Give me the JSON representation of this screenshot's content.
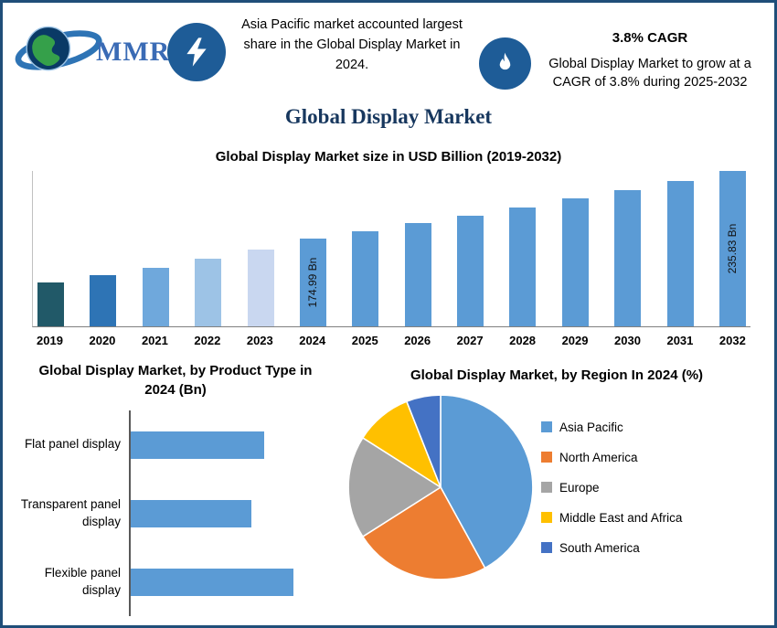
{
  "page": {
    "title": "Global Display Market",
    "border_color": "#1F4E79",
    "background_color": "#FFFFFF",
    "title_color": "#17375E"
  },
  "header": {
    "logo_text": "MMR",
    "left_callout": {
      "icon": "lightning-icon",
      "text": "Asia Pacific market accounted largest share in the Global Display Market in 2024."
    },
    "right_callout": {
      "icon": "flame-icon",
      "title": "3.8% CAGR",
      "text": "Global Display Market to grow at a CAGR of 3.8% during 2025-2032"
    },
    "badge_color": "#1E5C97"
  },
  "chart_data": [
    {
      "id": "market_size",
      "type": "bar",
      "title": "Global Display Market size in USD Billion (2019-2032)",
      "unit": "USD Billion",
      "categories": [
        "2019",
        "2020",
        "2021",
        "2022",
        "2023",
        "2024",
        "2025",
        "2026",
        "2027",
        "2028",
        "2029",
        "2030",
        "2031",
        "2032"
      ],
      "values": [
        135,
        141.5,
        148,
        156,
        165,
        174.99,
        181.64,
        188.54,
        195.71,
        203.14,
        210.86,
        218.88,
        227.19,
        235.83
      ],
      "bar_labels": {
        "2024": "174.99 Bn",
        "2032": "235.83 Bn"
      },
      "bar_colors": {
        "2019": "#215968",
        "2020": "#2E74B5",
        "2021": "#6FA8DC",
        "2022": "#9DC3E6",
        "2023": "#C9D7F0"
      },
      "default_color": "#5B9BD5",
      "ylim": [
        95,
        236
      ],
      "grid": false,
      "legend_position": "none"
    },
    {
      "id": "product_type",
      "type": "bar",
      "orientation": "horizontal",
      "title": "Global Display Market, by Product Type in 2024 (Bn)",
      "categories": [
        "Flat panel display",
        "Transparent panel display",
        "Flexible panel display"
      ],
      "values": [
        82,
        74,
        100
      ],
      "xlim": [
        0,
        100
      ],
      "color": "#5B9BD5",
      "grid": false,
      "legend_position": "none"
    },
    {
      "id": "region_share",
      "type": "pie",
      "title": "Global Display Market, by Region In 2024 (%)",
      "labels": [
        "Asia Pacific",
        "North America",
        "Europe",
        "Middle East and Africa",
        "South America"
      ],
      "values": [
        42,
        24,
        18,
        10,
        6
      ],
      "colors": [
        "#5B9BD5",
        "#ED7D31",
        "#A5A5A5",
        "#FFC000",
        "#4472C4"
      ],
      "start_angle_deg": 0,
      "direction": "clockwise",
      "legend_position": "right"
    }
  ]
}
